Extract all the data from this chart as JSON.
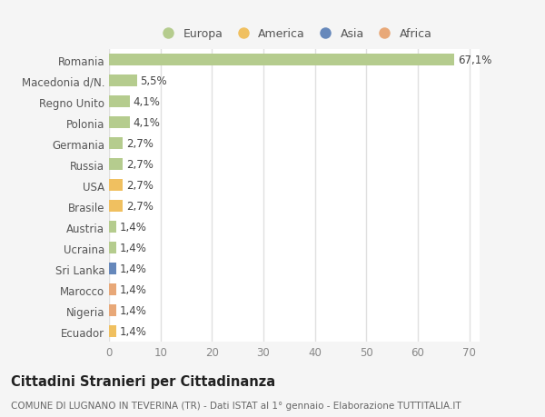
{
  "countries": [
    "Romania",
    "Macedonia d/N.",
    "Regno Unito",
    "Polonia",
    "Germania",
    "Russia",
    "USA",
    "Brasile",
    "Austria",
    "Ucraina",
    "Sri Lanka",
    "Marocco",
    "Nigeria",
    "Ecuador"
  ],
  "values": [
    67.1,
    5.5,
    4.1,
    4.1,
    2.7,
    2.7,
    2.7,
    2.7,
    1.4,
    1.4,
    1.4,
    1.4,
    1.4,
    1.4
  ],
  "labels": [
    "67,1%",
    "5,5%",
    "4,1%",
    "4,1%",
    "2,7%",
    "2,7%",
    "2,7%",
    "2,7%",
    "1,4%",
    "1,4%",
    "1,4%",
    "1,4%",
    "1,4%",
    "1,4%"
  ],
  "continents": [
    "Europa",
    "Europa",
    "Europa",
    "Europa",
    "Europa",
    "Europa",
    "America",
    "America",
    "Europa",
    "Europa",
    "Asia",
    "Africa",
    "Africa",
    "America"
  ],
  "continent_colors": {
    "Europa": "#b5cc8e",
    "America": "#f0c060",
    "Asia": "#6688bb",
    "Africa": "#e8a878"
  },
  "xlim": [
    0,
    72
  ],
  "xticks": [
    0,
    10,
    20,
    30,
    40,
    50,
    60,
    70
  ],
  "background_color": "#f5f5f5",
  "plot_area_color": "#ffffff",
  "title": "Cittadini Stranieri per Cittadinanza",
  "subtitle": "COMUNE DI LUGNANO IN TEVERINA (TR) - Dati ISTAT al 1° gennaio - Elaborazione TUTTITALIA.IT",
  "grid_color": "#e0e0e0",
  "bar_height": 0.55,
  "label_fontsize": 8.5,
  "tick_fontsize": 8.5,
  "title_fontsize": 10.5,
  "subtitle_fontsize": 7.5
}
